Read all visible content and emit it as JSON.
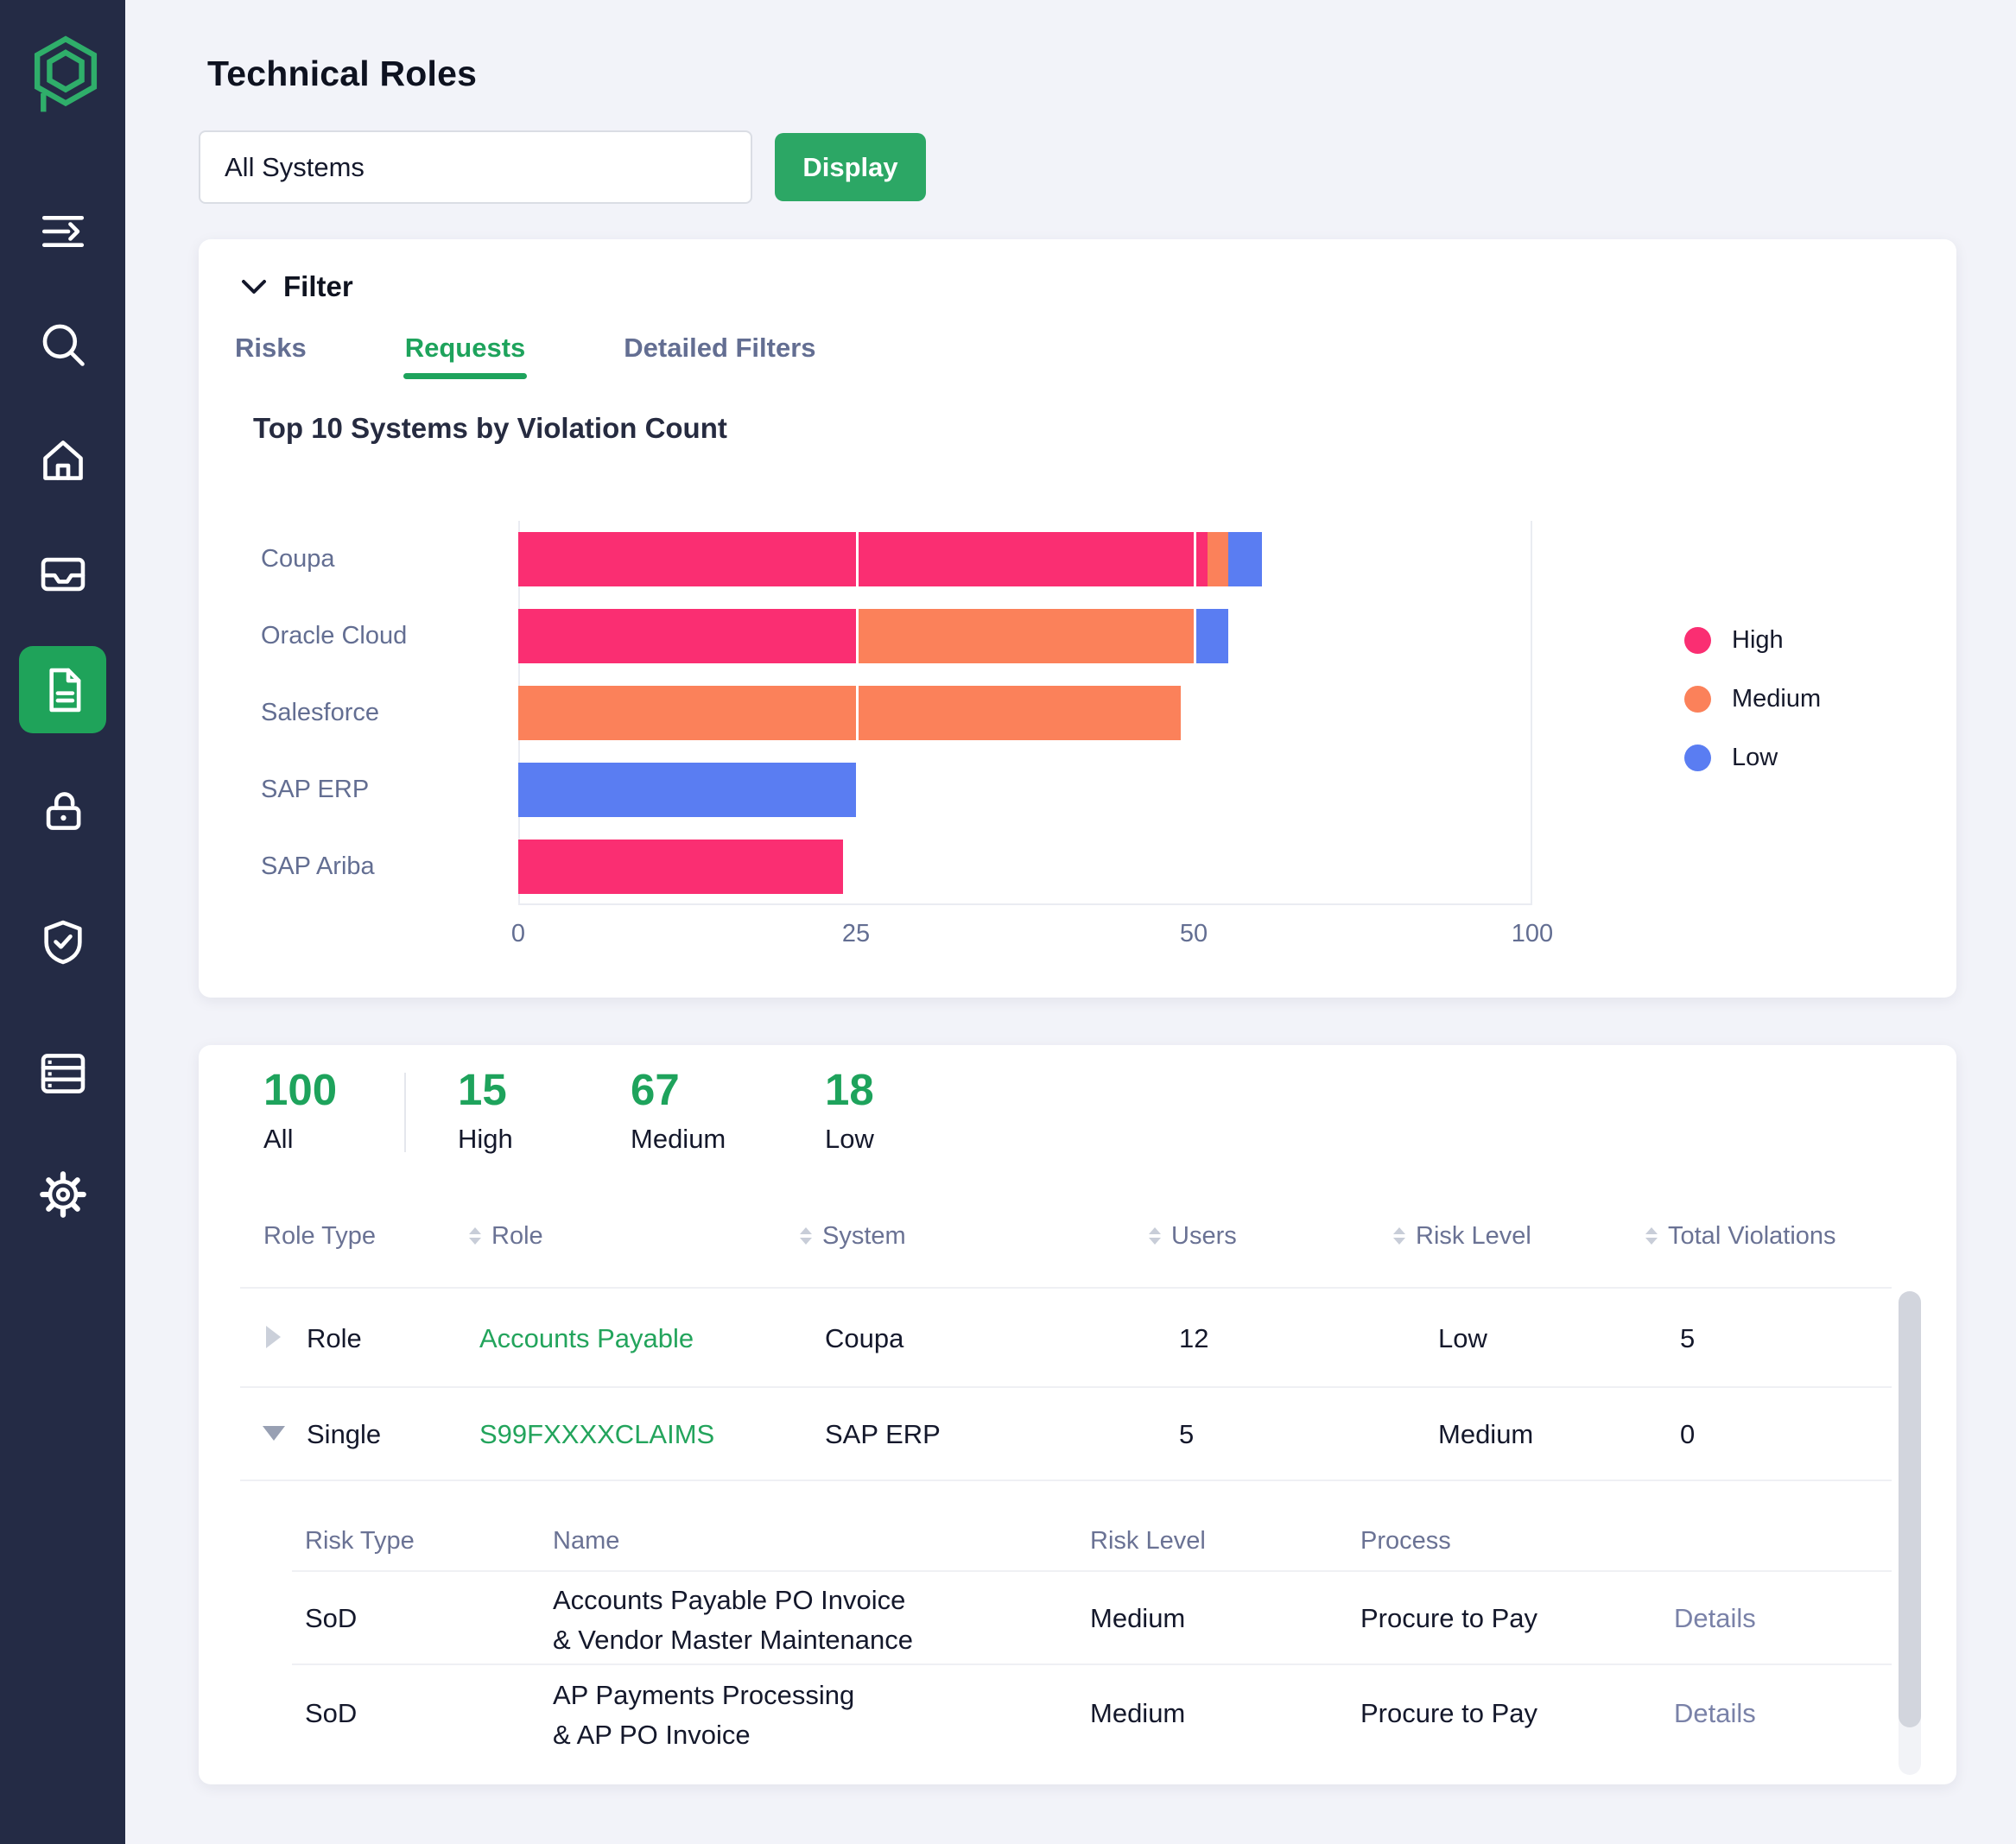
{
  "page": {
    "title": "Technical Roles"
  },
  "toolbar": {
    "system_value": "All Systems",
    "display_label": "Display"
  },
  "sidebar": {
    "items": [
      "menu",
      "search",
      "home",
      "inbox",
      "documents",
      "unlock",
      "shield-check",
      "data-list",
      "settings"
    ],
    "active_item": "documents"
  },
  "filter": {
    "title": "Filter",
    "tabs": [
      {
        "label": "Risks",
        "active": false
      },
      {
        "label": "Requests",
        "active": true
      },
      {
        "label": "Detailed Filters",
        "active": false
      }
    ]
  },
  "chart_data": {
    "type": "bar",
    "orientation": "horizontal",
    "stacked": true,
    "title": "Top 10 Systems by Violation Count",
    "categories": [
      "Coupa",
      "Oracle Cloud",
      "Salesforce",
      "SAP ERP",
      "SAP Ariba"
    ],
    "series": [
      {
        "name": "High",
        "color": "#FA2E72",
        "values": [
          51,
          25,
          0,
          0,
          24
        ]
      },
      {
        "name": "Medium",
        "color": "#FB815A",
        "values": [
          1.5,
          25,
          49,
          0,
          0
        ]
      },
      {
        "name": "Low",
        "color": "#5A7DF2",
        "values": [
          2.5,
          2.5,
          0,
          25,
          0
        ]
      }
    ],
    "x_axis": {
      "tick_labels": [
        "0",
        "25",
        "50",
        "100"
      ],
      "render_max": 75
    },
    "grid": true,
    "legend_position": "right"
  },
  "summary": {
    "stats": [
      {
        "value": "100",
        "label": "All"
      },
      {
        "value": "15",
        "label": "High"
      },
      {
        "value": "67",
        "label": "Medium"
      },
      {
        "value": "18",
        "label": "Low"
      }
    ]
  },
  "table": {
    "columns": [
      {
        "label": "Role Type",
        "sortable": false
      },
      {
        "label": "Role",
        "sortable": true
      },
      {
        "label": "System",
        "sortable": true
      },
      {
        "label": "Users",
        "sortable": true
      },
      {
        "label": "Risk Level",
        "sortable": true
      },
      {
        "label": "Total Violations",
        "sortable": true
      }
    ],
    "rows": [
      {
        "state": "collapsed",
        "role_type": "Role",
        "role": "Accounts Payable",
        "system": "Coupa",
        "users": "12",
        "risk_level": "Low",
        "total_violations": "5"
      },
      {
        "state": "expanded",
        "role_type": "Single",
        "role": "S99FXXXXCLAIMS",
        "system": "SAP ERP",
        "users": "5",
        "risk_level": "Medium",
        "total_violations": "0"
      }
    ],
    "nested": {
      "columns": [
        "Risk Type",
        "Name",
        "Risk Level",
        "Process"
      ],
      "rows": [
        {
          "risk_type": "SoD",
          "name_line1": "Accounts Payable PO Invoice",
          "name_line2": "& Vendor Master Maintenance",
          "risk_level": "Medium",
          "process": "Procure to Pay",
          "details_label": "Details"
        },
        {
          "risk_type": "SoD",
          "name_line1": "AP Payments Processing",
          "name_line2": "& AP PO Invoice",
          "risk_level": "Medium",
          "process": "Procure to Pay",
          "details_label": "Details"
        }
      ]
    }
  },
  "colors": {
    "sidebar_bg": "#242B45",
    "brand_green": "#1FA35A",
    "high_pink": "#FA2E72",
    "medium_orange": "#FB815A",
    "low_blue": "#5A7DF2",
    "header_gray": "#6A7294",
    "page_bg": "#F2F3F9"
  }
}
